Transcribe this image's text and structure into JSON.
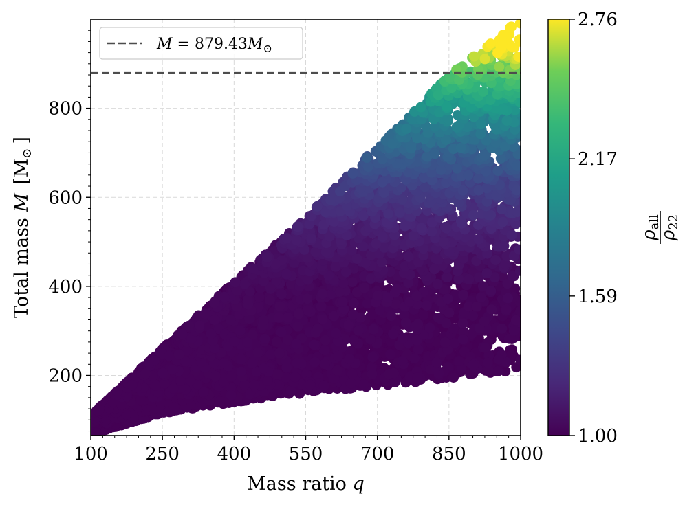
{
  "chart_data": {
    "type": "scatter",
    "xlabel": "Mass ratio q",
    "xlabel_parts": {
      "text": "Mass ratio ",
      "var": "q"
    },
    "ylabel": "Total mass M [M⊙]",
    "ylabel_parts": {
      "text": "Total mass ",
      "var": "M",
      "unit_open": "[M",
      "unit_sub": "⊙",
      "unit_close": "]"
    },
    "xlim": [
      100,
      1000
    ],
    "ylim": [
      65,
      1000
    ],
    "xticks": [
      100,
      250,
      400,
      550,
      700,
      850,
      1000
    ],
    "yticks": [
      200,
      400,
      600,
      800
    ],
    "grid": true,
    "reference_line": {
      "y": 879.43,
      "style": "dashed",
      "color": "#4d4d4d",
      "label": "M = 879.43M⊙"
    },
    "legend": {
      "placement": "top-left",
      "label_var": "M",
      "label_eq": " = 879.43",
      "label_unit_var": "M",
      "label_unit_sub": "⊙"
    },
    "colorbar": {
      "cmap": "viridis",
      "range": [
        1.0,
        2.76
      ],
      "ticks": [
        1.0,
        1.59,
        2.17,
        2.76
      ],
      "tick_labels": [
        "1.00",
        "1.59",
        "2.17",
        "2.76"
      ],
      "label": "ρall/ρ22",
      "label_num_var": "ρ",
      "label_num_sub": "all",
      "label_den_var": "ρ",
      "label_den_sub": "22"
    },
    "region": {
      "description": "points fill wedge bounded below and above by envelope",
      "lower_envelope": [
        [
          100,
          68
        ],
        [
          250,
          115
        ],
        [
          400,
          140
        ],
        [
          550,
          160
        ],
        [
          700,
          177
        ],
        [
          850,
          192
        ],
        [
          1000,
          212
        ]
      ],
      "upper_envelope": [
        [
          100,
          110
        ],
        [
          250,
          260
        ],
        [
          400,
          410
        ],
        [
          550,
          555
        ],
        [
          700,
          715
        ],
        [
          850,
          875
        ],
        [
          1000,
          1000
        ]
      ],
      "color_trend": "ratio rises from 1.0 near bottom to ~2.76 near the top-right corner"
    }
  }
}
